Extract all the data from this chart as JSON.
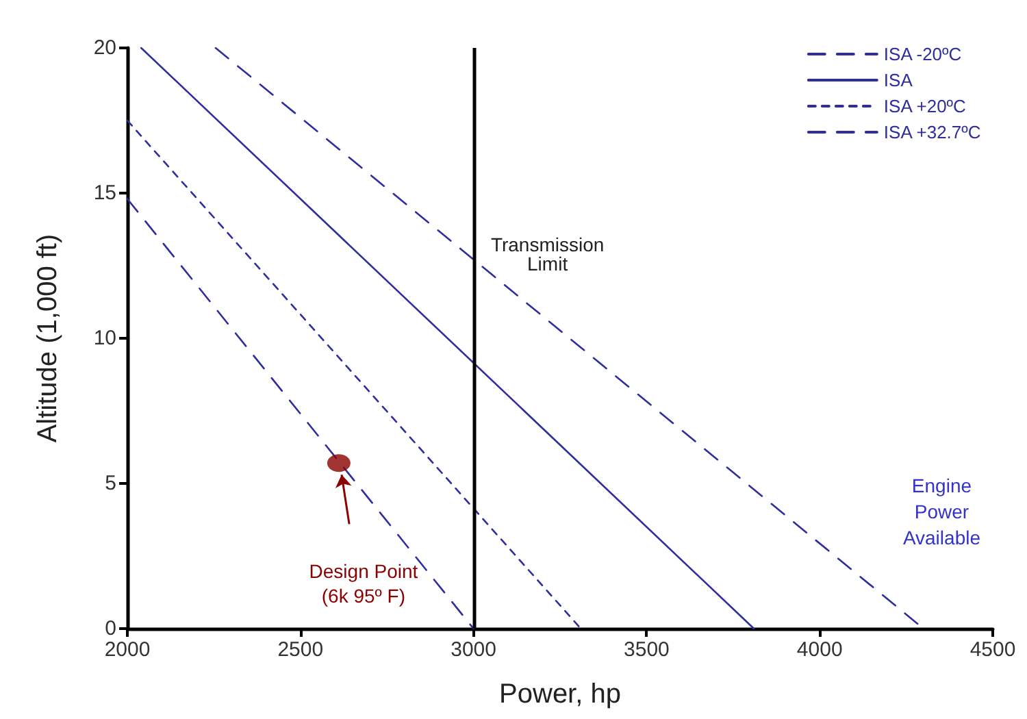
{
  "chart_data": {
    "type": "line",
    "xlabel": "Power, hp",
    "ylabel": "Altitude (1,000 ft)",
    "xlim": [
      2000,
      4500
    ],
    "xticks": [
      2000,
      2500,
      3000,
      3500,
      4000,
      4500
    ],
    "ylim": [
      0,
      20
    ],
    "yticks": [
      0,
      5,
      10,
      15,
      20
    ],
    "grid": false,
    "legend": "top right",
    "marker": "none",
    "series": [
      {
        "name": "ISA -20ºC",
        "color": "#2e2e9e",
        "line_style": "dashed",
        "x": [
          2255,
          4300
        ],
        "values": [
          20,
          0
        ]
      },
      {
        "name": "ISA",
        "color": "#2e2e9e",
        "line_style": "solid",
        "x": [
          2040,
          3810
        ],
        "values": [
          20,
          0
        ]
      },
      {
        "name": "ISA +20ºC",
        "color": "#2e2e9e",
        "line_style": "dotted",
        "x": [
          2000,
          3310
        ],
        "values": [
          17.5,
          0
        ]
      },
      {
        "name": "ISA +32.7ºC",
        "color": "#2e2e9e",
        "line_style": "dashed",
        "x": [
          2000,
          3000
        ],
        "values": [
          14.8,
          0
        ]
      },
      {
        "type": "scatter",
        "color": "#8b0000",
        "marker": "circle",
        "x": [
          2611
        ],
        "values": [
          5.7
        ]
      }
    ],
    "ref_lines": [
      {
        "axis": "x",
        "value": 3000,
        "label": "Transmission\nLimit",
        "color": "#000000"
      }
    ],
    "annotations": [
      "Design Point\n(6k 95º F)",
      "Engine\nPower\nAvailable"
    ]
  }
}
